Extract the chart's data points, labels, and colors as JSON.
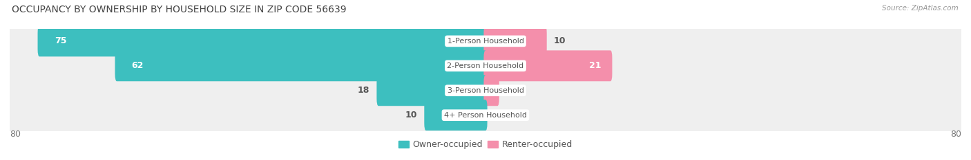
{
  "title": "OCCUPANCY BY OWNERSHIP BY HOUSEHOLD SIZE IN ZIP CODE 56639",
  "source": "Source: ZipAtlas.com",
  "categories": [
    "1-Person Household",
    "2-Person Household",
    "3-Person Household",
    "4+ Person Household"
  ],
  "owner_values": [
    75,
    62,
    18,
    10
  ],
  "renter_values": [
    10,
    21,
    2,
    0
  ],
  "owner_color": "#3DBFBF",
  "renter_color": "#F48FAB",
  "row_bg_color": "#EFEFEF",
  "row_bg_edge": "#E0E0E0",
  "max_val": 80,
  "axis_tick_left": "80",
  "axis_tick_right": "80",
  "title_fontsize": 10,
  "source_fontsize": 7.5,
  "bar_label_fontsize": 9,
  "category_fontsize": 8,
  "legend_fontsize": 9,
  "axis_label_fontsize": 9
}
